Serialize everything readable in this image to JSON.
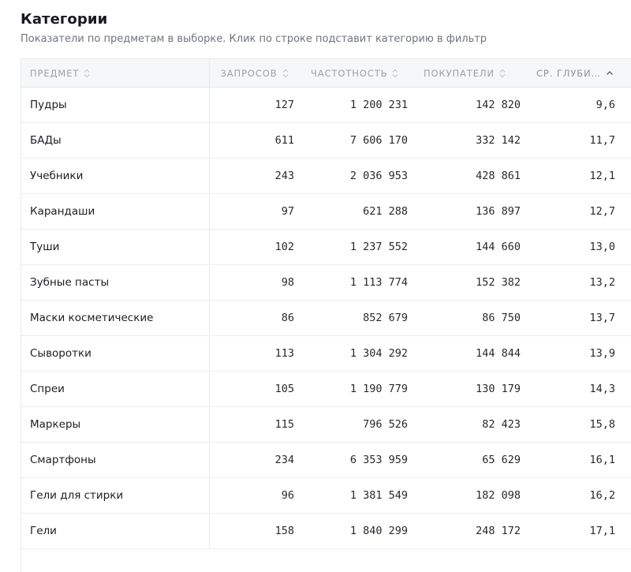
{
  "page": {
    "title": "Категории",
    "subtitle": "Показатели по предметам в выборке. Клик по строке подставит категорию в фильтр"
  },
  "table": {
    "columns": [
      {
        "label": "ПРЕДМЕТ",
        "sort_icon": "sort-both-icon"
      },
      {
        "label": "ЗАПРОСОВ",
        "sort_icon": "sort-both-icon"
      },
      {
        "label": "ЧАСТОТНОСТЬ",
        "sort_icon": "sort-both-icon"
      },
      {
        "label": "ПОКУПАТЕЛИ",
        "sort_icon": "sort-both-icon"
      },
      {
        "label": "СР. ГЛУБИНА",
        "sort_icon": "sort-asc-icon"
      }
    ],
    "rows": [
      {
        "subject": "Пудры",
        "requests": "127",
        "frequency": "1 200 231",
        "buyers": "142 820",
        "depth": "9,6"
      },
      {
        "subject": "БАДы",
        "requests": "611",
        "frequency": "7 606 170",
        "buyers": "332 142",
        "depth": "11,7"
      },
      {
        "subject": "Учебники",
        "requests": "243",
        "frequency": "2 036 953",
        "buyers": "428 861",
        "depth": "12,1"
      },
      {
        "subject": "Карандаши",
        "requests": "97",
        "frequency": "621 288",
        "buyers": "136 897",
        "depth": "12,7"
      },
      {
        "subject": "Туши",
        "requests": "102",
        "frequency": "1 237 552",
        "buyers": "144 660",
        "depth": "13,0"
      },
      {
        "subject": "Зубные пасты",
        "requests": "98",
        "frequency": "1 113 774",
        "buyers": "152 382",
        "depth": "13,2"
      },
      {
        "subject": "Маски косметические",
        "requests": "86",
        "frequency": "852 679",
        "buyers": "86 750",
        "depth": "13,7"
      },
      {
        "subject": "Сыворотки",
        "requests": "113",
        "frequency": "1 304 292",
        "buyers": "144 844",
        "depth": "13,9"
      },
      {
        "subject": "Спреи",
        "requests": "105",
        "frequency": "1 190 779",
        "buyers": "130 179",
        "depth": "14,3"
      },
      {
        "subject": "Маркеры",
        "requests": "115",
        "frequency": "796 526",
        "buyers": "82 423",
        "depth": "15,8"
      },
      {
        "subject": "Смартфоны",
        "requests": "234",
        "frequency": "6 353 959",
        "buyers": "65 629",
        "depth": "16,1"
      },
      {
        "subject": "Гели для стирки",
        "requests": "96",
        "frequency": "1 381 549",
        "buyers": "182 098",
        "depth": "16,2"
      },
      {
        "subject": "Гели",
        "requests": "158",
        "frequency": "1 840 299",
        "buyers": "248 172",
        "depth": "17,1"
      }
    ]
  },
  "colors": {
    "header_bg": "#f6f7f8",
    "header_text": "#9ba1a9",
    "border": "#e6e8eb",
    "text": "#1b1d22"
  }
}
